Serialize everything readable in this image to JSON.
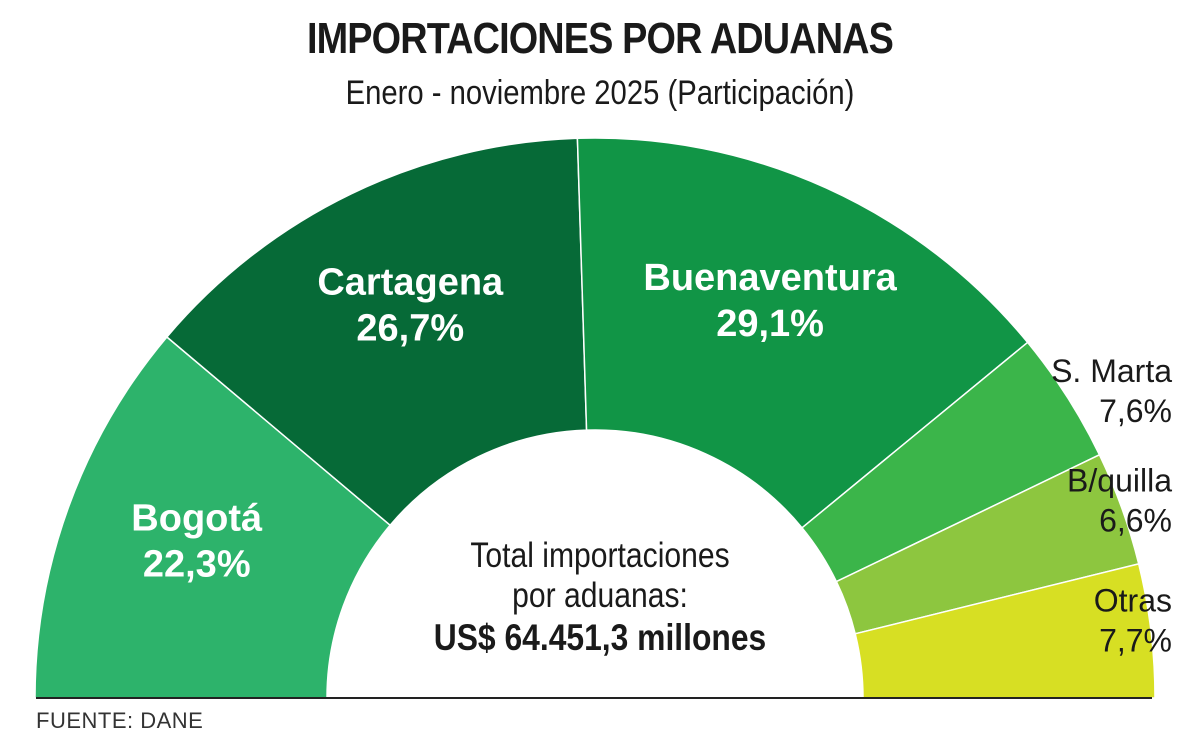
{
  "title": "IMPORTACIONES POR ADUANAS",
  "subtitle": "Enero - noviembre 2025 (Participación)",
  "source": "FUENTE: DANE",
  "center_label": {
    "line1": "Total importaciones",
    "line2": "por aduanas:",
    "value": "US$ 64.451,3 millones"
  },
  "chart_data": {
    "type": "pie",
    "variant": "half-donut",
    "unit": "%",
    "slices": [
      {
        "name": "Bogotá",
        "value": 22.3,
        "label": "22,3%",
        "color": "#2db36b"
      },
      {
        "name": "Cartagena",
        "value": 26.7,
        "label": "26,7%",
        "color": "#066a37"
      },
      {
        "name": "Buenaventura",
        "value": 29.1,
        "label": "29,1%",
        "color": "#119546"
      },
      {
        "name": "S. Marta",
        "value": 7.6,
        "label": "7,6%",
        "color": "#3bb54a"
      },
      {
        "name": "B/quilla",
        "value": 6.6,
        "label": "6,6%",
        "color": "#8dc63f"
      },
      {
        "name": "Otras",
        "value": 7.7,
        "label": "7,7%",
        "color": "#d7df23"
      }
    ]
  }
}
